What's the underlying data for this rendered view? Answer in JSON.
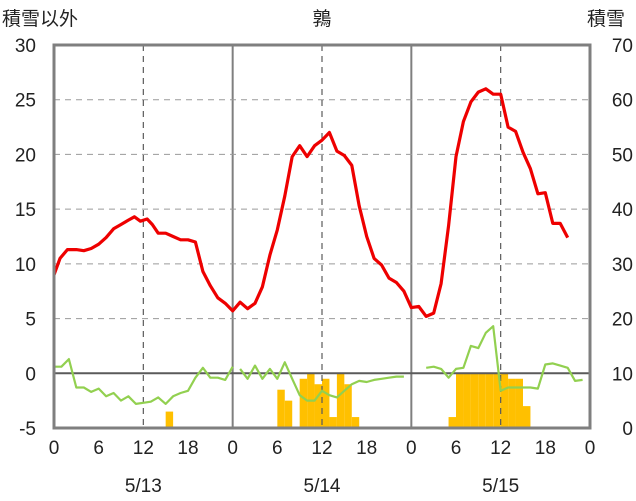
{
  "chart_data": {
    "type": "line+bar",
    "title": "鶉",
    "y_left_label": "積雪以外",
    "y_right_label": "積雪",
    "y_left": {
      "min": -5,
      "max": 30,
      "ticks": [
        -5,
        0,
        5,
        10,
        15,
        20,
        25,
        30
      ]
    },
    "y_right": {
      "min": 0,
      "max": 70,
      "ticks": [
        0,
        10,
        20,
        30,
        40,
        50,
        60,
        70
      ]
    },
    "x_hours_total": 72,
    "x_tick_labels": [
      "0",
      "6",
      "12",
      "18",
      "0",
      "6",
      "12",
      "18",
      "0",
      "6",
      "12",
      "18",
      "0"
    ],
    "day_labels": [
      "5/13",
      "5/14",
      "5/15"
    ],
    "grid": {
      "day_separators": true,
      "noon_dashed": true,
      "zero_line": true
    },
    "colors": {
      "temperature": "#ee0000",
      "green": "#92d050",
      "bars": "#ffc000",
      "axis": "#7f7f7f"
    },
    "temperature": [
      [
        0,
        9.0
      ],
      [
        0.8,
        10.5
      ],
      [
        1.8,
        11.3
      ],
      [
        3,
        11.3
      ],
      [
        4,
        11.2
      ],
      [
        5,
        11.4
      ],
      [
        6,
        11.8
      ],
      [
        7,
        12.4
      ],
      [
        8,
        13.2
      ],
      [
        9,
        13.6
      ],
      [
        10,
        14.0
      ],
      [
        10.8,
        14.3
      ],
      [
        11.6,
        13.9
      ],
      [
        12.5,
        14.1
      ],
      [
        13.2,
        13.6
      ],
      [
        14,
        12.8
      ],
      [
        15,
        12.8
      ],
      [
        16,
        12.5
      ],
      [
        17,
        12.2
      ],
      [
        18,
        12.2
      ],
      [
        19,
        12.0
      ],
      [
        20,
        9.3
      ],
      [
        21,
        8.0
      ],
      [
        22,
        6.9
      ],
      [
        23,
        6.4
      ],
      [
        24,
        5.7
      ],
      [
        25,
        6.5
      ],
      [
        26,
        5.9
      ],
      [
        27,
        6.4
      ],
      [
        28,
        7.9
      ],
      [
        29,
        10.8
      ],
      [
        30,
        13.1
      ],
      [
        31,
        16.2
      ],
      [
        32,
        19.8
      ],
      [
        33,
        20.8
      ],
      [
        34,
        19.8
      ],
      [
        35,
        20.8
      ],
      [
        36,
        21.3
      ],
      [
        37,
        22.0
      ],
      [
        38,
        20.3
      ],
      [
        39,
        19.9
      ],
      [
        40,
        19.0
      ],
      [
        41,
        15.3
      ],
      [
        42,
        12.5
      ],
      [
        43,
        10.5
      ],
      [
        44,
        9.9
      ],
      [
        45,
        8.7
      ],
      [
        46,
        8.3
      ],
      [
        47,
        7.5
      ],
      [
        48,
        6.0
      ],
      [
        49,
        6.1
      ],
      [
        50,
        5.2
      ],
      [
        51,
        5.5
      ],
      [
        52,
        8.2
      ],
      [
        53,
        13.5
      ],
      [
        54,
        19.8
      ],
      [
        55,
        23.0
      ],
      [
        56,
        24.8
      ],
      [
        57,
        25.7
      ],
      [
        58,
        26.0
      ],
      [
        59,
        25.5
      ],
      [
        60,
        25.5
      ],
      [
        61,
        22.5
      ],
      [
        62,
        22.1
      ],
      [
        63,
        20.2
      ],
      [
        64,
        18.7
      ],
      [
        65,
        16.4
      ],
      [
        66,
        16.5
      ],
      [
        67,
        13.7
      ],
      [
        68,
        13.7
      ],
      [
        69,
        12.4
      ]
    ],
    "green_segments": [
      [
        [
          0,
          0.6
        ],
        [
          1,
          0.6
        ],
        [
          2,
          1.3
        ],
        [
          3,
          -1.3
        ],
        [
          4,
          -1.3
        ],
        [
          5,
          -1.7
        ],
        [
          6,
          -1.4
        ],
        [
          7,
          -2.1
        ],
        [
          8,
          -1.8
        ],
        [
          9,
          -2.5
        ],
        [
          10,
          -2.1
        ],
        [
          11,
          -2.8
        ],
        [
          12,
          -2.7
        ],
        [
          13,
          -2.6
        ],
        [
          14,
          -2.2
        ],
        [
          15,
          -2.8
        ],
        [
          16,
          -2.1
        ],
        [
          17,
          -1.8
        ],
        [
          18,
          -1.6
        ],
        [
          19,
          -0.4
        ],
        [
          20,
          0.5
        ],
        [
          21,
          -0.4
        ],
        [
          22,
          -0.4
        ],
        [
          23,
          -0.6
        ],
        [
          24,
          0.6
        ]
      ],
      [
        [
          25,
          0.4
        ],
        [
          26,
          -0.5
        ],
        [
          27,
          0.7
        ],
        [
          28,
          -0.5
        ],
        [
          29,
          0.4
        ],
        [
          30,
          -0.5
        ],
        [
          31,
          1.0
        ],
        [
          32,
          -0.5
        ],
        [
          33,
          -2.0
        ],
        [
          34,
          -2.5
        ],
        [
          35,
          -2.5
        ],
        [
          36,
          -1.6
        ],
        [
          37,
          -2.0
        ],
        [
          38,
          -2.2
        ],
        [
          39,
          -1.6
        ],
        [
          40,
          -1.0
        ],
        [
          41,
          -0.7
        ],
        [
          42,
          -0.8
        ],
        [
          43,
          -0.6
        ],
        [
          44,
          -0.5
        ],
        [
          45,
          -0.4
        ],
        [
          46,
          -0.3
        ],
        [
          47,
          -0.3
        ]
      ],
      [
        [
          50,
          0.5
        ],
        [
          51,
          0.6
        ],
        [
          52,
          0.4
        ],
        [
          53,
          -0.4
        ],
        [
          54,
          0.4
        ],
        [
          55,
          0.5
        ],
        [
          56,
          2.5
        ],
        [
          57,
          2.3
        ],
        [
          58,
          3.7
        ],
        [
          59,
          4.3
        ],
        [
          60,
          -1.6
        ],
        [
          61,
          -1.3
        ],
        [
          62,
          -1.3
        ],
        [
          63,
          -1.3
        ],
        [
          64,
          -1.3
        ],
        [
          65,
          -1.4
        ],
        [
          66,
          0.8
        ],
        [
          67,
          0.9
        ],
        [
          68,
          0.7
        ],
        [
          69,
          0.5
        ],
        [
          70,
          -0.7
        ],
        [
          71,
          -0.6
        ]
      ]
    ],
    "bars": [
      [
        15,
        3
      ],
      [
        30,
        7
      ],
      [
        31,
        5
      ],
      [
        33,
        9
      ],
      [
        34,
        10
      ],
      [
        35,
        8
      ],
      [
        36,
        9
      ],
      [
        37,
        2
      ],
      [
        38,
        10
      ],
      [
        39,
        8
      ],
      [
        40,
        2
      ],
      [
        53,
        2
      ],
      [
        54,
        10
      ],
      [
        55,
        10
      ],
      [
        56,
        10
      ],
      [
        57,
        10
      ],
      [
        58,
        10
      ],
      [
        59,
        10
      ],
      [
        60,
        10
      ],
      [
        61,
        9
      ],
      [
        62,
        9
      ],
      [
        63,
        4
      ]
    ]
  }
}
